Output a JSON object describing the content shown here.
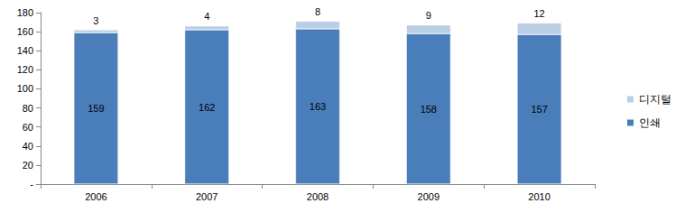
{
  "chart_data": {
    "type": "bar",
    "stacked": true,
    "data_labels": true,
    "legend": "right",
    "grid": false,
    "categories": [
      "2006",
      "2007",
      "2008",
      "2009",
      "2010"
    ],
    "series": [
      {
        "name": "인쇄",
        "color": "#4a7ebb",
        "values": [
          159,
          162,
          163,
          158,
          157
        ]
      },
      {
        "name": "디지털",
        "color": "#b9cde5",
        "values": [
          3,
          4,
          8,
          9,
          12
        ]
      }
    ],
    "ylim": [
      0,
      180
    ],
    "yticks": [
      {
        "value": 0,
        "label": "-"
      },
      20,
      40,
      60,
      80,
      100,
      120,
      140,
      160,
      180
    ]
  }
}
